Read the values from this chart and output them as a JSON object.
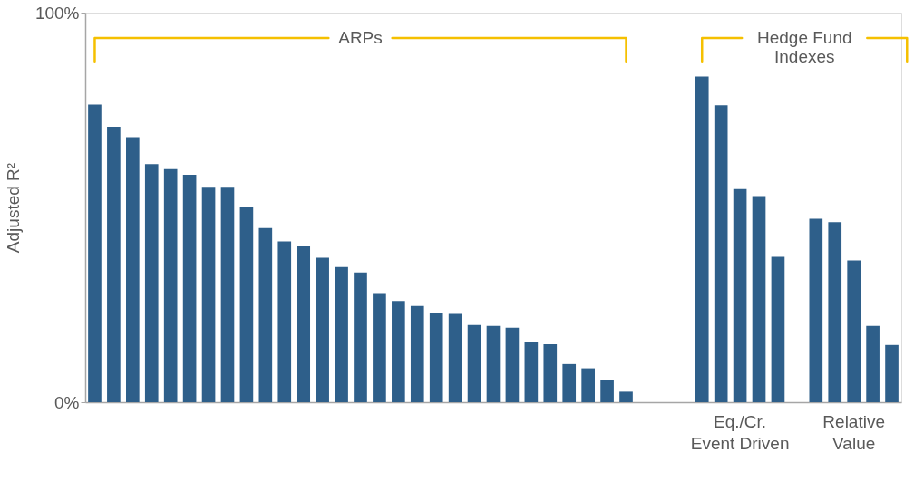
{
  "chart_data": {
    "type": "bar",
    "ylabel": "Adjusted R²",
    "categories": [
      null,
      null,
      null,
      null,
      null,
      null,
      null,
      null,
      null,
      null,
      null,
      null,
      null,
      null,
      null,
      null,
      null,
      null,
      null,
      null,
      null,
      null,
      null,
      null,
      null,
      null,
      null,
      null,
      null,
      null,
      null,
      null,
      null,
      null,
      "Eq./Cr.\nEvent Driven",
      null,
      null,
      null,
      null,
      null,
      "Relative\nValue",
      null,
      null
    ],
    "values": [
      76.4,
      70.7,
      68.0,
      61.1,
      59.8,
      58.4,
      55.3,
      55.3,
      50.0,
      44.7,
      41.3,
      40.0,
      37.1,
      34.7,
      33.3,
      27.8,
      26.0,
      24.7,
      22.9,
      22.7,
      19.8,
      19.6,
      19.1,
      15.6,
      14.9,
      9.8,
      8.7,
      5.8,
      2.7,
      null,
      null,
      null,
      83.6,
      76.2,
      54.7,
      52.9,
      37.3,
      null,
      47.1,
      46.2,
      36.4,
      19.6,
      14.7
    ],
    "color": "#2e5f8a",
    "ylim": [
      0,
      100
    ],
    "yticks": [
      {
        "value": 0,
        "label": "0%"
      },
      {
        "value": 100,
        "label": "100%"
      }
    ],
    "grid": false,
    "legend": false,
    "annotations": [
      "ARPs",
      "Hedge Fund\nIndexes"
    ]
  }
}
